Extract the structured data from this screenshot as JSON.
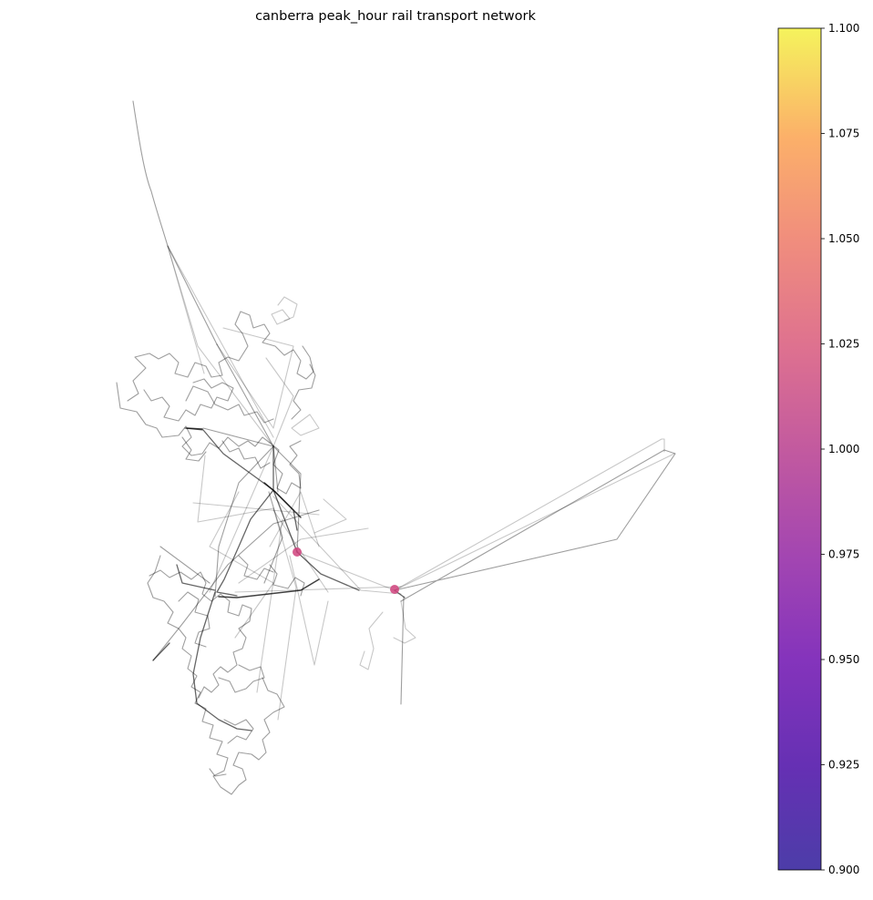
{
  "title": "canberra peak_hour rail transport network",
  "chart_data": {
    "type": "network",
    "title": "canberra peak_hour rail transport network",
    "nodes": [
      {
        "value": 1.0
      },
      {
        "value": 1.0
      }
    ],
    "colorbar": {
      "colormap": "plasma",
      "min": 0.9,
      "max": 1.1,
      "ticks": [
        "0.900",
        "0.925",
        "0.950",
        "0.975",
        "1.000",
        "1.025",
        "1.050",
        "1.075",
        "1.100"
      ]
    },
    "edge_color": "#000000",
    "node_color": "#d0427c",
    "axes_visible": false,
    "legend": "none"
  }
}
